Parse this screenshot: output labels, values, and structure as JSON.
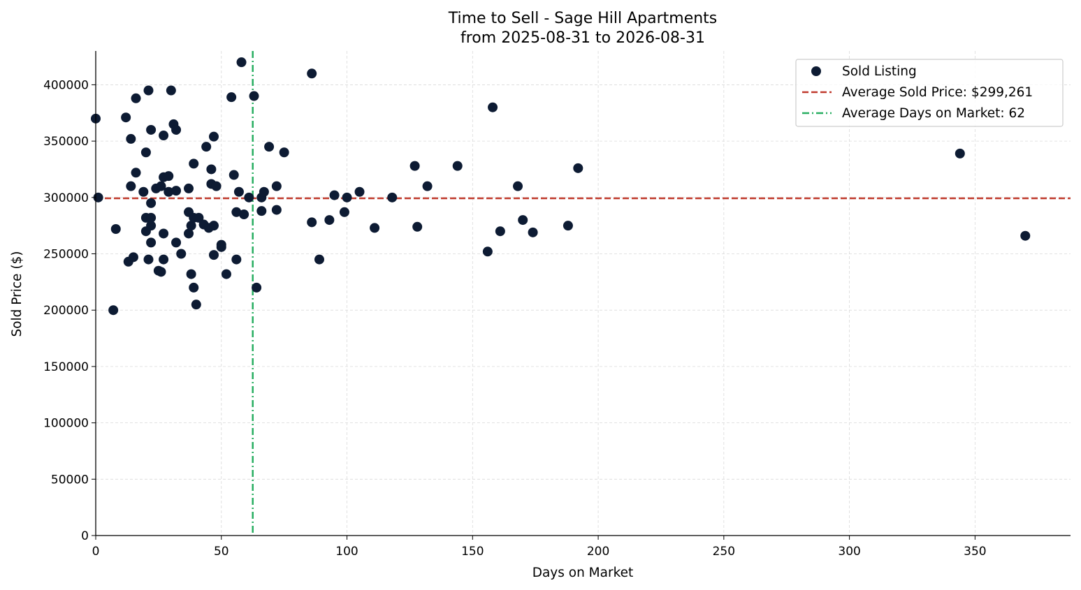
{
  "chart_data": {
    "type": "scatter",
    "title": "Time to Sell - Sage Hill Apartments",
    "subtitle": "from 2025-08-31 to 2026-08-31",
    "xlabel": "Days on Market",
    "ylabel": "Sold Price ($)",
    "xlim": [
      0,
      388
    ],
    "ylim": [
      0,
      430000
    ],
    "xticks": [
      0,
      50,
      100,
      150,
      200,
      250,
      300,
      350
    ],
    "yticks": [
      0,
      50000,
      100000,
      150000,
      200000,
      250000,
      300000,
      350000,
      400000
    ],
    "grid": true,
    "legend_position": "top-right",
    "colors": {
      "points": "#0d1b33",
      "avg_price": "#c0392b",
      "avg_days": "#27ae60"
    },
    "series": [
      {
        "name": "Sold Listing",
        "points": [
          [
            0,
            370000
          ],
          [
            1,
            300000
          ],
          [
            7,
            200000
          ],
          [
            8,
            272000
          ],
          [
            12,
            371000
          ],
          [
            13,
            243000
          ],
          [
            14,
            352000
          ],
          [
            14,
            310000
          ],
          [
            15,
            247000
          ],
          [
            16,
            388000
          ],
          [
            16,
            322000
          ],
          [
            19,
            305000
          ],
          [
            20,
            340000
          ],
          [
            20,
            282000
          ],
          [
            20,
            270000
          ],
          [
            21,
            395000
          ],
          [
            21,
            245000
          ],
          [
            22,
            360000
          ],
          [
            22,
            295000
          ],
          [
            22,
            282000
          ],
          [
            22,
            275000
          ],
          [
            22,
            260000
          ],
          [
            24,
            308000
          ],
          [
            25,
            235000
          ],
          [
            26,
            310000
          ],
          [
            26,
            234000
          ],
          [
            27,
            355000
          ],
          [
            27,
            318000
          ],
          [
            27,
            268000
          ],
          [
            27,
            245000
          ],
          [
            29,
            305000
          ],
          [
            29,
            319000
          ],
          [
            30,
            395000
          ],
          [
            31,
            365000
          ],
          [
            32,
            360000
          ],
          [
            32,
            306000
          ],
          [
            32,
            260000
          ],
          [
            34,
            250000
          ],
          [
            37,
            308000
          ],
          [
            37,
            287000
          ],
          [
            37,
            268000
          ],
          [
            38,
            275000
          ],
          [
            38,
            232000
          ],
          [
            39,
            330000
          ],
          [
            39,
            282000
          ],
          [
            39,
            220000
          ],
          [
            40,
            205000
          ],
          [
            41,
            282000
          ],
          [
            43,
            276000
          ],
          [
            44,
            345000
          ],
          [
            45,
            273000
          ],
          [
            46,
            325000
          ],
          [
            46,
            312000
          ],
          [
            47,
            354000
          ],
          [
            47,
            275000
          ],
          [
            47,
            249000
          ],
          [
            48,
            310000
          ],
          [
            50,
            258000
          ],
          [
            50,
            256000
          ],
          [
            52,
            232000
          ],
          [
            54,
            389000
          ],
          [
            55,
            320000
          ],
          [
            56,
            287000
          ],
          [
            56,
            245000
          ],
          [
            57,
            305000
          ],
          [
            58,
            420000
          ],
          [
            59,
            285000
          ],
          [
            61,
            300000
          ],
          [
            63,
            390000
          ],
          [
            64,
            220000
          ],
          [
            66,
            300000
          ],
          [
            66,
            288000
          ],
          [
            67,
            305000
          ],
          [
            69,
            345000
          ],
          [
            72,
            310000
          ],
          [
            72,
            289000
          ],
          [
            75,
            340000
          ],
          [
            86,
            410000
          ],
          [
            86,
            278000
          ],
          [
            89,
            245000
          ],
          [
            93,
            280000
          ],
          [
            95,
            302000
          ],
          [
            99,
            287000
          ],
          [
            100,
            300000
          ],
          [
            105,
            305000
          ],
          [
            111,
            273000
          ],
          [
            118,
            300000
          ],
          [
            127,
            328000
          ],
          [
            128,
            274000
          ],
          [
            132,
            310000
          ],
          [
            144,
            328000
          ],
          [
            156,
            252000
          ],
          [
            158,
            380000
          ],
          [
            161,
            270000
          ],
          [
            168,
            310000
          ],
          [
            170,
            280000
          ],
          [
            174,
            269000
          ],
          [
            188,
            275000
          ],
          [
            192,
            326000
          ],
          [
            344,
            339000
          ],
          [
            370,
            266000
          ]
        ]
      }
    ],
    "average_sold_price": 299261,
    "average_days_on_market": 62.5,
    "legend": [
      {
        "label": "Sold Listing",
        "kind": "marker"
      },
      {
        "label": "Average Sold Price: $299,261",
        "kind": "dashed"
      },
      {
        "label": "Average Days on Market: 62",
        "kind": "dashdot"
      }
    ]
  }
}
